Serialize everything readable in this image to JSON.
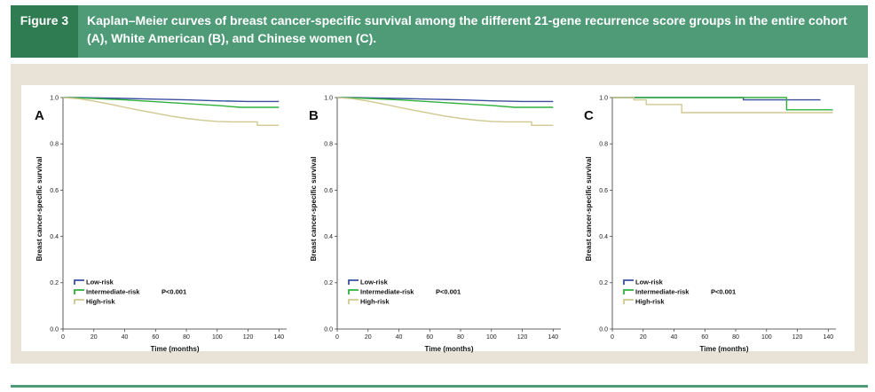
{
  "figure": {
    "label": "Figure 3",
    "title": "Kaplan–Meier curves of breast cancer-specific survival among the different 21-gene recurrence score groups in the entire cohort (A), White American (B), and Chinese women (C)."
  },
  "colors": {
    "low": "#3b4fa0",
    "intermediate": "#2fb03a",
    "high": "#cfc890"
  },
  "chart_data": [
    {
      "type": "line",
      "panel": "A",
      "xlabel": "Time (months)",
      "ylabel": "Breast cancer-specific survival",
      "xlim": [
        0,
        145
      ],
      "ylim": [
        0,
        1.0
      ],
      "xticks": [
        "0",
        "20",
        "40",
        "60",
        "80",
        "100",
        "120",
        "140"
      ],
      "yticks": [
        "0.0",
        "0.2",
        "0.4",
        "0.6",
        "0.8",
        "1.0"
      ],
      "legend": [
        "Low-risk",
        "Intermediate-risk",
        "High-risk"
      ],
      "annotation": "P<0.001",
      "series": [
        {
          "name": "Low-risk",
          "x": [
            0,
            10,
            20,
            40,
            60,
            80,
            100,
            120,
            140
          ],
          "y": [
            1.0,
            1.0,
            0.999,
            0.996,
            0.993,
            0.99,
            0.986,
            0.983,
            0.983
          ]
        },
        {
          "name": "Intermediate-risk",
          "x": [
            0,
            10,
            20,
            40,
            60,
            80,
            100,
            115,
            120,
            140
          ],
          "y": [
            1.0,
            0.999,
            0.996,
            0.99,
            0.982,
            0.974,
            0.966,
            0.958,
            0.958,
            0.958
          ]
        },
        {
          "name": "High-risk",
          "x": [
            0,
            10,
            20,
            30,
            40,
            50,
            60,
            70,
            80,
            90,
            100,
            110,
            120,
            126,
            126,
            140
          ],
          "y": [
            1.0,
            0.995,
            0.985,
            0.972,
            0.958,
            0.945,
            0.932,
            0.92,
            0.91,
            0.902,
            0.897,
            0.895,
            0.895,
            0.895,
            0.88,
            0.88
          ]
        }
      ]
    },
    {
      "type": "line",
      "panel": "B",
      "xlabel": "Time (months)",
      "ylabel": "Breast cancer-specific survival",
      "xlim": [
        0,
        145
      ],
      "ylim": [
        0,
        1.0
      ],
      "xticks": [
        "0",
        "20",
        "40",
        "60",
        "80",
        "100",
        "120",
        "140"
      ],
      "yticks": [
        "0.0",
        "0.2",
        "0.4",
        "0.6",
        "0.8",
        "1.0"
      ],
      "legend": [
        "Low-risk",
        "Intermediate-risk",
        "High-risk"
      ],
      "annotation": "P<0.001",
      "series": [
        {
          "name": "Low-risk",
          "x": [
            0,
            10,
            20,
            40,
            60,
            80,
            100,
            120,
            140
          ],
          "y": [
            1.0,
            1.0,
            0.999,
            0.996,
            0.993,
            0.99,
            0.986,
            0.983,
            0.983
          ]
        },
        {
          "name": "Intermediate-risk",
          "x": [
            0,
            10,
            20,
            40,
            60,
            80,
            100,
            115,
            120,
            140
          ],
          "y": [
            1.0,
            0.999,
            0.996,
            0.99,
            0.982,
            0.974,
            0.966,
            0.958,
            0.958,
            0.958
          ]
        },
        {
          "name": "High-risk",
          "x": [
            0,
            10,
            20,
            30,
            40,
            50,
            60,
            70,
            80,
            90,
            100,
            110,
            120,
            126,
            126,
            140
          ],
          "y": [
            1.0,
            0.995,
            0.985,
            0.972,
            0.958,
            0.945,
            0.932,
            0.92,
            0.91,
            0.902,
            0.897,
            0.895,
            0.895,
            0.895,
            0.88,
            0.88
          ]
        }
      ]
    },
    {
      "type": "line",
      "panel": "C",
      "xlabel": "Time (months)",
      "ylabel": "Breast cancer-specific survival",
      "xlim": [
        0,
        145
      ],
      "ylim": [
        0,
        1.0
      ],
      "xticks": [
        "0",
        "20",
        "40",
        "60",
        "80",
        "100",
        "120",
        "140"
      ],
      "yticks": [
        "0.0",
        "0.2",
        "0.4",
        "0.6",
        "0.8",
        "1.0"
      ],
      "legend": [
        "Low-risk",
        "Intermediate-risk",
        "High-risk"
      ],
      "annotation": "P<0.001",
      "series": [
        {
          "name": "Low-risk",
          "x": [
            0,
            20,
            40,
            60,
            85,
            85,
            135
          ],
          "y": [
            1.0,
            1.0,
            1.0,
            1.0,
            1.0,
            0.99,
            0.99
          ]
        },
        {
          "name": "Intermediate-risk",
          "x": [
            0,
            20,
            40,
            60,
            80,
            113,
            113,
            143
          ],
          "y": [
            1.0,
            1.0,
            1.0,
            1.0,
            1.0,
            1.0,
            0.947,
            0.947
          ]
        },
        {
          "name": "High-risk",
          "x": [
            0,
            14,
            14,
            22,
            22,
            45,
            45,
            143
          ],
          "y": [
            1.0,
            1.0,
            0.99,
            0.99,
            0.97,
            0.97,
            0.935,
            0.935
          ]
        }
      ]
    }
  ]
}
